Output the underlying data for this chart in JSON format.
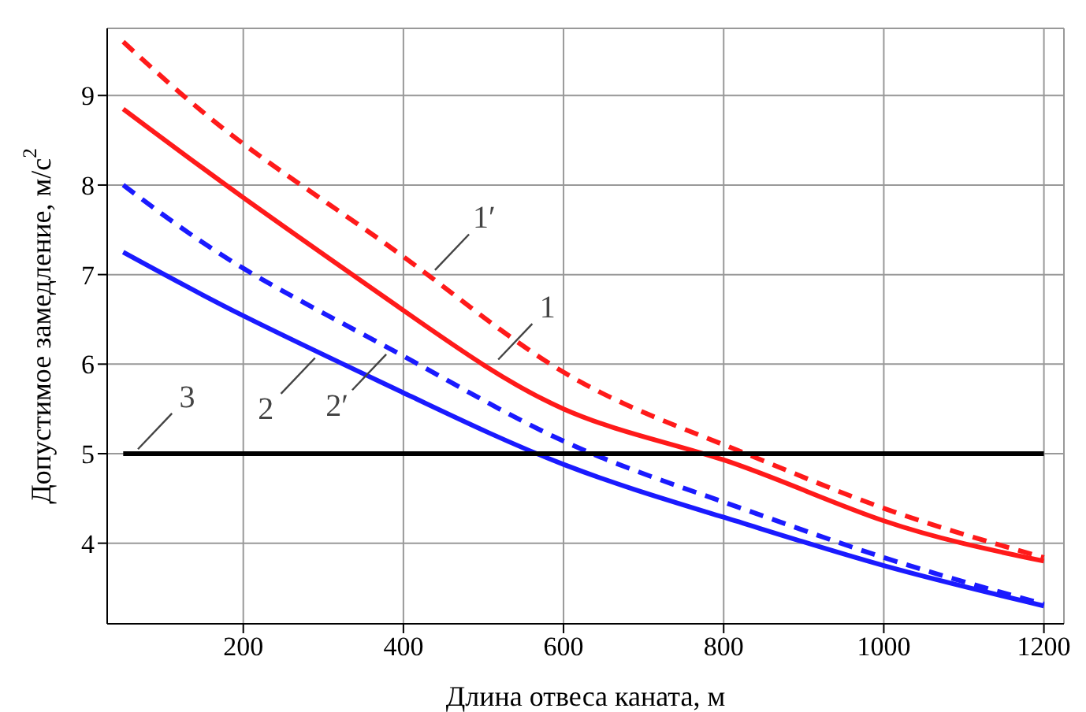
{
  "chart_data": {
    "type": "line",
    "xlabel": "Длина отвеса каната, м",
    "ylabel": "Допустимое замедление, м/с$^{2}$",
    "xlim": [
      30,
      1225
    ],
    "ylim": [
      3.1,
      9.75
    ],
    "xticks": [
      200,
      400,
      600,
      800,
      1000,
      1200
    ],
    "yticks": [
      4,
      5,
      6,
      7,
      8,
      9
    ],
    "grid": true,
    "series": [
      {
        "color": "#ff1a1a",
        "line_style": "dashed",
        "x": [
          50,
          200,
          400,
          600,
          800,
          1000,
          1200
        ],
        "values": [
          9.6,
          8.46,
          7.2,
          5.91,
          5.1,
          4.39,
          3.84
        ]
      },
      {
        "color": "#ff1a1a",
        "line_style": "solid",
        "x": [
          50,
          200,
          400,
          600,
          800,
          1000,
          1200
        ],
        "values": [
          8.85,
          7.86,
          6.6,
          5.5,
          4.93,
          4.25,
          3.8
        ]
      },
      {
        "color": "#1a1aff",
        "line_style": "dashed",
        "x": [
          50,
          200,
          400,
          600,
          800,
          1000,
          1200
        ],
        "values": [
          8.0,
          7.07,
          6.09,
          5.14,
          4.46,
          3.84,
          3.32
        ]
      },
      {
        "color": "#1a1aff",
        "line_style": "solid",
        "x": [
          50,
          200,
          400,
          600,
          800,
          1000,
          1200
        ],
        "values": [
          7.25,
          6.54,
          5.68,
          4.88,
          4.29,
          3.75,
          3.3
        ]
      },
      {
        "color": "#000000",
        "line_style": "solid",
        "x": [
          50,
          1200
        ],
        "values": [
          5,
          5
        ]
      }
    ],
    "annotations": [
      {
        "text": "1′",
        "x": 434,
        "y": 7.0
      },
      {
        "text": "1",
        "x": 513,
        "y": 6.0
      },
      {
        "text": "2",
        "x": 295,
        "y": 6.12
      },
      {
        "text": "2′",
        "x": 384,
        "y": 6.16
      },
      {
        "text": "3",
        "x": 63,
        "y": 5
      }
    ]
  }
}
